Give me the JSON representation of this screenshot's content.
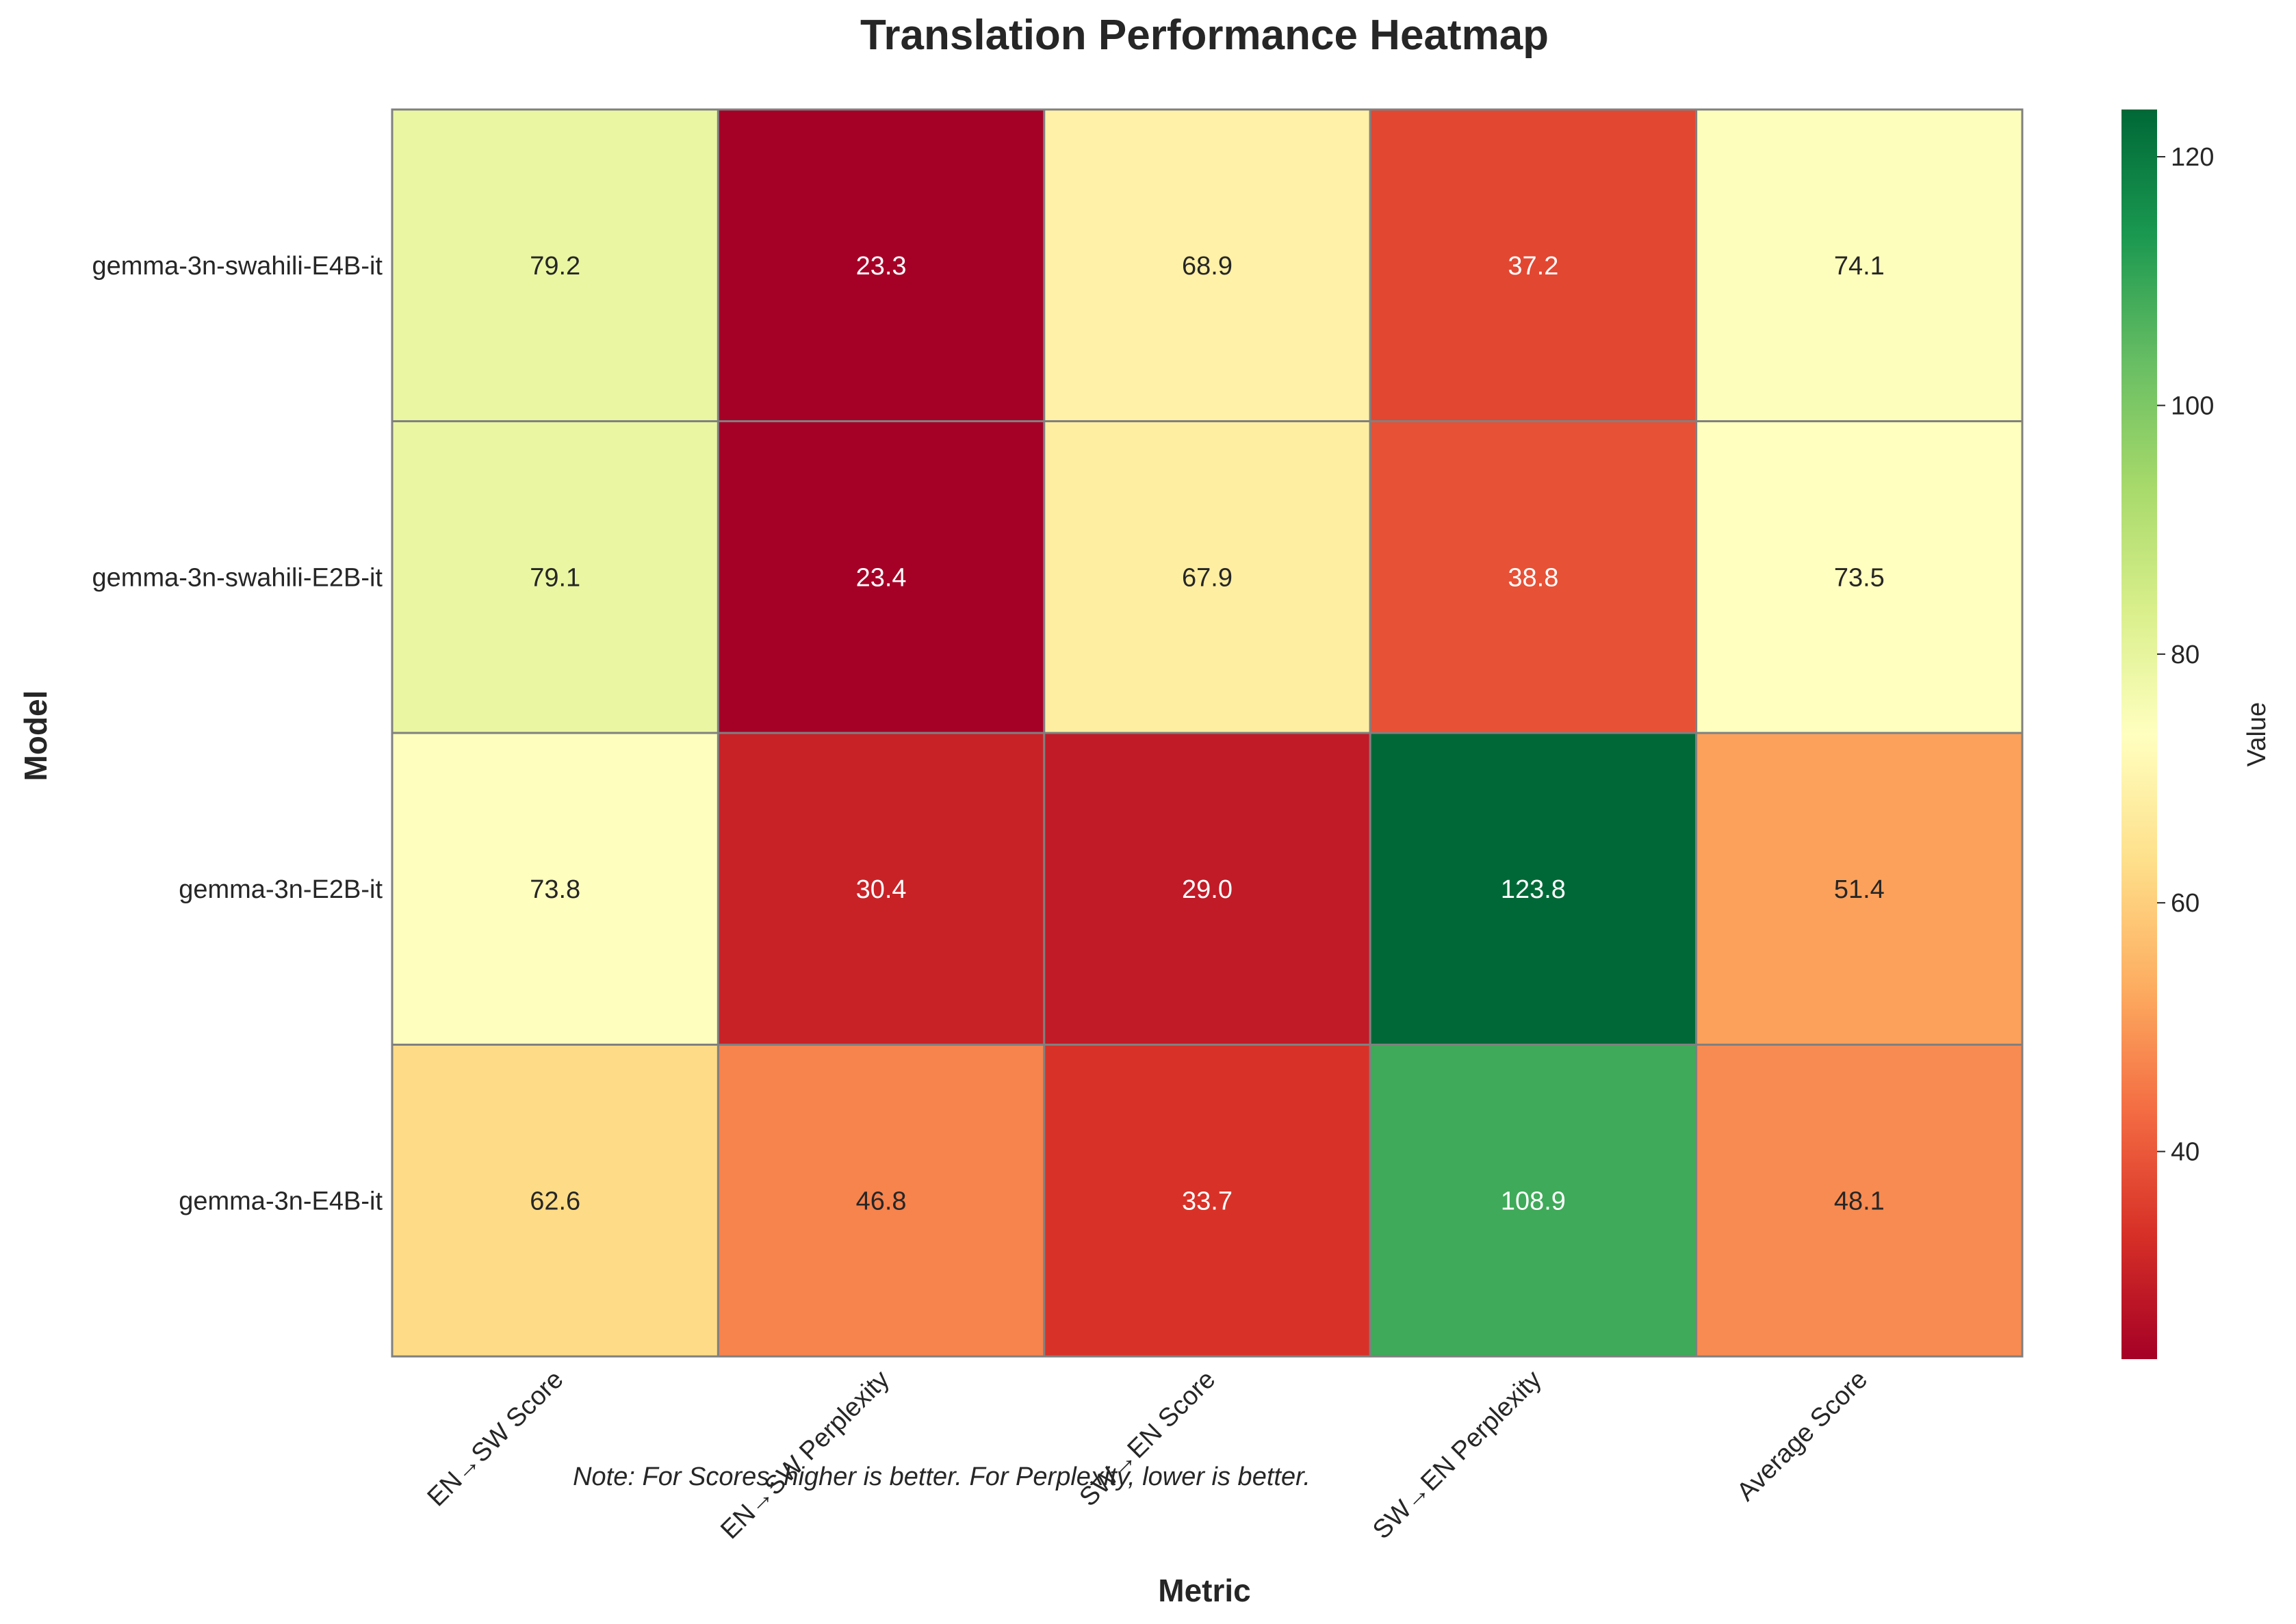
{
  "chart_data": {
    "type": "heatmap",
    "title": "Translation Performance Heatmap",
    "xlabel": "Metric",
    "ylabel": "Model",
    "x_categories": [
      "EN→SW Score",
      "EN→SW Perplexity",
      "SW→EN Score",
      "SW→EN Perplexity",
      "Average Score"
    ],
    "y_categories": [
      "gemma-3n-swahili-E4B-it",
      "gemma-3n-swahili-E2B-it",
      "gemma-3n-E2B-it",
      "gemma-3n-E4B-it"
    ],
    "values": [
      [
        79.2,
        23.3,
        68.9,
        37.2,
        74.1
      ],
      [
        79.1,
        23.4,
        67.9,
        38.8,
        73.5
      ],
      [
        73.8,
        30.4,
        29.0,
        123.8,
        51.4
      ],
      [
        62.6,
        46.8,
        33.7,
        108.9,
        48.1
      ]
    ],
    "colormap": "RdYlGn",
    "color_range": [
      23.3,
      123.8
    ],
    "colorbar_label": "Value",
    "colorbar_ticks": [
      40,
      60,
      80,
      100,
      120
    ],
    "note": "Note: For Scores, higher is better. For Perplexity, lower is better."
  }
}
